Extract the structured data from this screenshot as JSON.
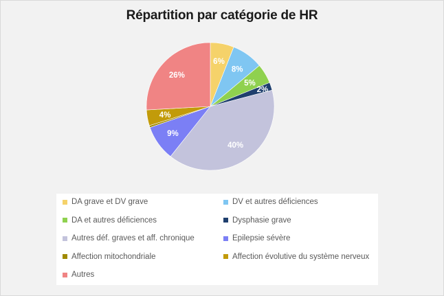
{
  "chart_data": {
    "type": "pie",
    "title": "Répartition par catégorie de HR",
    "categories": [
      "DA grave et DV grave",
      "DV et autres déficiences",
      "DA et autres déficiences",
      "Dysphasie grave",
      "Autres déf. graves et aff. chronique",
      "Epilepsie sévère",
      "Affection mitochondriale",
      "Affection évolutive du système nerveux",
      "Autres"
    ],
    "values": [
      6,
      8,
      5,
      2,
      40,
      9,
      0.5,
      4,
      26
    ],
    "data_labels": [
      "6%",
      "8%",
      "5%",
      "2%",
      "40%",
      "9%",
      "",
      "4%",
      "26%"
    ],
    "colors": [
      "#f5d26a",
      "#7fc6f2",
      "#8fd14f",
      "#1f3f6e",
      "#c3c3dc",
      "#7b7ff5",
      "#a08a00",
      "#c29b0a",
      "#f08484"
    ],
    "legend_position": "bottom"
  }
}
